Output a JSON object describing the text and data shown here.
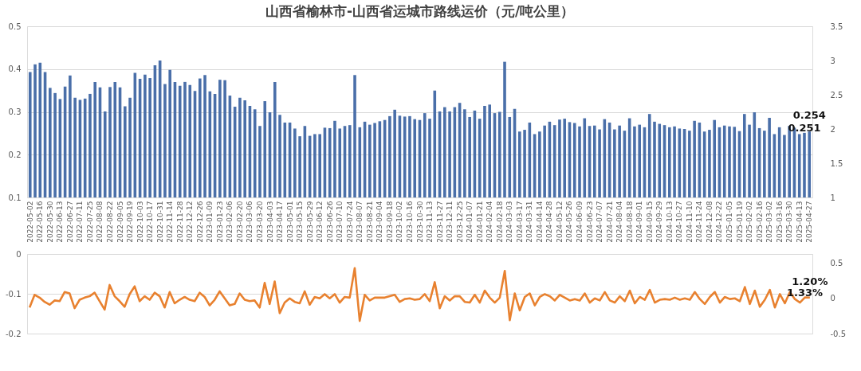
{
  "chart_data": [
    {
      "type": "bar",
      "title": "山西省榆林市-山西省运城市路线运价（元/吨公里）",
      "categories": [
        "2022-05-02",
        null,
        "2022-05-16",
        null,
        "2022-05-30",
        null,
        "2022-06-13",
        null,
        "2022-06-27",
        null,
        "2022-07-11",
        null,
        "2022-07-25",
        null,
        "2022-08-08",
        null,
        "2022-08-22",
        null,
        "2022-09-05",
        null,
        "2022-09-19",
        null,
        "2022-10-03",
        null,
        "2022-10-17",
        null,
        "2022-10-31",
        null,
        "2022-11-14",
        null,
        "2022-11-28",
        null,
        "2022-12-12",
        null,
        "2022-12-26",
        null,
        "2023-01-09",
        null,
        "2023-01-23",
        null,
        "2023-02-06",
        null,
        "2023-02-20",
        null,
        "2023-03-06",
        null,
        "2023-03-20",
        null,
        "2023-04-03",
        null,
        "2023-04-17",
        null,
        "2023-05-01",
        null,
        "2023-05-15",
        null,
        "2023-05-29",
        null,
        "2023-06-12",
        null,
        "2023-06-26",
        null,
        "2023-07-10",
        null,
        "2023-07-24",
        null,
        "2023-08-07",
        null,
        "2023-08-21",
        null,
        "2023-09-04",
        null,
        "2023-09-18",
        null,
        "2023-10-02",
        null,
        "2023-10-16",
        null,
        "2023-10-30",
        null,
        "2023-11-13",
        null,
        "2023-11-27",
        null,
        "2023-12-11",
        null,
        "2023-12-25",
        null,
        "2024-01-07",
        null,
        "2024-01-21",
        null,
        "2024-02-04",
        null,
        "2024-02-18",
        null,
        "2024-03-03",
        null,
        "2024-03-17",
        null,
        "2024-03-31",
        null,
        "2024-04-14",
        null,
        "2024-04-28",
        null,
        "2024-05-12",
        null,
        "2024-05-26",
        null,
        "2024-06-09",
        null,
        "2024-06-23",
        null,
        "2024-07-07",
        null,
        "2024-07-21",
        null,
        "2024-08-04",
        null,
        "2024-08-18",
        null,
        "2024-09-01",
        null,
        "2024-09-15",
        null,
        "2024-09-29",
        null,
        "2024-10-13",
        null,
        "2024-10-27",
        null,
        "2024-11-10",
        null,
        "2024-11-24",
        null,
        "2024-12-08",
        null,
        "2024-12-22",
        null,
        "2025-01-05",
        null,
        "2025-01-19",
        null,
        "2025-02-02",
        null,
        "2025-02-16",
        null,
        "2025-03-02",
        null,
        "2025-03-16",
        null,
        "2025-03-30",
        null,
        "2025-04-13",
        null,
        "2025-04-27"
      ],
      "values": [
        0.393,
        0.411,
        0.415,
        0.393,
        0.356,
        0.344,
        0.33,
        0.359,
        0.385,
        0.333,
        0.328,
        0.331,
        0.342,
        0.37,
        0.357,
        0.301,
        0.358,
        0.37,
        0.357,
        0.313,
        0.333,
        0.391,
        0.377,
        0.387,
        0.379,
        0.409,
        0.42,
        0.365,
        0.398,
        0.37,
        0.361,
        0.37,
        0.363,
        0.349,
        0.378,
        0.386,
        0.348,
        0.342,
        0.375,
        0.374,
        0.338,
        0.312,
        0.333,
        0.327,
        0.314,
        0.306,
        0.267,
        0.325,
        0.299,
        0.37,
        0.293,
        0.275,
        0.275,
        0.261,
        0.243,
        0.267,
        0.244,
        0.248,
        0.248,
        0.263,
        0.262,
        0.279,
        0.261,
        0.267,
        0.269,
        0.386,
        0.264,
        0.277,
        0.27,
        0.274,
        0.278,
        0.281,
        0.29,
        0.305,
        0.291,
        0.289,
        0.29,
        0.283,
        0.281,
        0.297,
        0.284,
        0.35,
        0.301,
        0.311,
        0.301,
        0.311,
        0.321,
        0.306,
        0.288,
        0.303,
        0.284,
        0.314,
        0.317,
        0.297,
        0.3,
        0.417,
        0.288,
        0.307,
        0.254,
        0.258,
        0.275,
        0.248,
        0.254,
        0.268,
        0.277,
        0.269,
        0.282,
        0.284,
        0.276,
        0.274,
        0.266,
        0.285,
        0.267,
        0.268,
        0.259,
        0.283,
        0.275,
        0.259,
        0.268,
        0.256,
        0.285,
        0.266,
        0.27,
        0.264,
        0.295,
        0.277,
        0.272,
        0.269,
        0.264,
        0.266,
        0.261,
        0.26,
        0.256,
        0.279,
        0.275,
        0.254,
        0.258,
        0.281,
        0.264,
        0.268,
        0.266,
        0.265,
        0.255,
        0.295,
        0.27,
        0.299,
        0.262,
        0.256,
        0.286,
        0.248,
        0.264,
        0.246,
        0.267,
        0.263,
        0.248,
        0.251,
        0.254
      ],
      "value_labels": [
        null,
        null,
        null,
        null,
        null,
        null,
        null,
        null,
        null,
        null,
        null,
        null,
        null,
        null,
        null,
        null,
        null,
        null,
        null,
        null,
        null,
        null,
        null,
        null,
        null,
        null,
        null,
        null,
        null,
        null,
        null,
        null,
        null,
        null,
        null,
        null,
        null,
        null,
        null,
        null,
        null,
        null,
        null,
        null,
        null,
        null,
        null,
        null,
        null,
        null,
        null,
        null,
        null,
        null,
        null,
        null,
        null,
        null,
        null,
        null,
        null,
        null,
        null,
        null,
        null,
        null,
        null,
        null,
        null,
        null,
        null,
        null,
        null,
        null,
        null,
        null,
        null,
        null,
        null,
        null,
        null,
        null,
        null,
        null,
        null,
        null,
        null,
        null,
        null,
        null,
        null,
        null,
        null,
        null,
        null,
        null,
        null,
        null,
        null,
        null,
        null,
        null,
        null,
        null,
        null,
        null,
        null,
        null,
        null,
        null,
        null,
        null,
        null,
        null,
        null,
        null,
        null,
        null,
        null,
        null,
        null,
        null,
        null,
        null,
        null,
        null,
        null,
        null,
        null,
        null,
        null,
        null,
        null,
        null,
        null,
        null,
        null,
        null,
        null,
        null,
        null,
        null,
        null,
        null,
        null,
        null,
        null,
        null,
        null,
        null,
        null,
        null,
        null,
        null,
        null,
        "0.251",
        "0.254"
      ],
      "color": "#4a6fa9",
      "ylim": [
        0.1,
        0.5
      ],
      "yticks": [
        0.1,
        0.2,
        0.3,
        0.4,
        0.5
      ],
      "y2lim": [
        1,
        3.5
      ],
      "y2ticks": [
        1,
        1.5,
        2,
        2.5,
        3,
        3.5
      ],
      "grid": "y"
    },
    {
      "type": "line",
      "categories": [
        "2022-05-02",
        null,
        "2022-05-16",
        null,
        "2022-05-30",
        null,
        "2022-06-13",
        null,
        "2022-06-27",
        null,
        "2022-07-11",
        null,
        "2022-07-25",
        null,
        "2022-08-08",
        null,
        "2022-08-22",
        null,
        "2022-09-05",
        null,
        "2022-09-19",
        null,
        "2022-10-03",
        null,
        "2022-10-17",
        null,
        "2022-10-31",
        null,
        "2022-11-14",
        null,
        "2022-11-28",
        null,
        "2022-12-12",
        null,
        "2022-12-26",
        null,
        "2023-01-09",
        null,
        "2023-01-23",
        null,
        "2023-02-06",
        null,
        "2023-02-20",
        null,
        "2023-03-06",
        null,
        "2023-03-20",
        null,
        "2023-04-03",
        null,
        "2023-04-17",
        null,
        "2023-05-01",
        null,
        "2023-05-15",
        null,
        "2023-05-29",
        null,
        "2023-06-12",
        null,
        "2023-06-26",
        null,
        "2023-07-10",
        null,
        "2023-07-24",
        null,
        "2023-08-07",
        null,
        "2023-08-21",
        null,
        "2023-09-04",
        null,
        "2023-09-18",
        null,
        "2023-10-02",
        null,
        "2023-10-16",
        null,
        "2023-10-30",
        null,
        "2023-11-13",
        null,
        "2023-11-27",
        null,
        "2023-12-11",
        null,
        "2023-12-25",
        null,
        "2024-01-07",
        null,
        "2024-01-21",
        null,
        "2024-02-04",
        null,
        "2024-02-18",
        null,
        "2024-03-03",
        null,
        "2024-03-17",
        null,
        "2024-03-31",
        null,
        "2024-04-14",
        null,
        "2024-04-28",
        null,
        "2024-05-12",
        null,
        "2024-05-26",
        null,
        "2024-06-09",
        null,
        "2024-06-23",
        null,
        "2024-07-07",
        null,
        "2024-07-21",
        null,
        "2024-08-04",
        null,
        "2024-08-18",
        null,
        "2024-09-01",
        null,
        "2024-09-15",
        null,
        "2024-09-29",
        null,
        "2024-10-13",
        null,
        "2024-10-27",
        null,
        "2024-11-10",
        null,
        "2024-11-24",
        null,
        "2024-12-08",
        null,
        "2024-12-22",
        null,
        "2025-01-05",
        null,
        "2025-01-19",
        null,
        "2025-02-02",
        null,
        "2025-02-16",
        null,
        "2025-03-02",
        null,
        "2025-03-16",
        null,
        "2025-03-30",
        null,
        "2025-04-13",
        null,
        "2025-04-27"
      ],
      "series": [
        {
          "color": "#e8812f",
          "axis": "y2",
          "values": [
            -0.13,
            0.05,
            0.01,
            -0.05,
            -0.09,
            -0.03,
            -0.04,
            0.09,
            0.07,
            -0.14,
            -0.02,
            0.01,
            0.03,
            0.08,
            -0.04,
            -0.16,
            0.19,
            0.03,
            -0.04,
            -0.12,
            0.06,
            0.17,
            -0.04,
            0.03,
            -0.02,
            0.08,
            0.03,
            -0.13,
            0.09,
            -0.07,
            -0.02,
            0.02,
            -0.02,
            -0.04,
            0.08,
            0.02,
            -0.1,
            -0.02,
            0.1,
            0.0,
            -0.1,
            -0.08,
            0.07,
            -0.02,
            -0.04,
            -0.03,
            -0.13,
            0.22,
            -0.08,
            0.24,
            -0.21,
            -0.06,
            0.0,
            -0.05,
            -0.07,
            0.1,
            -0.09,
            0.02,
            0.0,
            0.06,
            0.0,
            0.06,
            -0.06,
            0.02,
            0.01,
            0.43,
            -0.32,
            0.05,
            -0.03,
            0.01,
            0.01,
            0.01,
            0.03,
            0.05,
            -0.05,
            -0.01,
            0.0,
            -0.02,
            -0.01,
            0.06,
            -0.04,
            0.23,
            -0.14,
            0.03,
            -0.03,
            0.03,
            0.03,
            -0.05,
            -0.06,
            0.05,
            -0.06,
            0.11,
            0.01,
            -0.06,
            0.01,
            0.39,
            -0.31,
            0.07,
            -0.17,
            0.02,
            0.07,
            -0.1,
            0.02,
            0.06,
            0.03,
            -0.03,
            0.05,
            0.01,
            -0.03,
            -0.01,
            -0.03,
            0.07,
            -0.06,
            0.0,
            -0.03,
            0.09,
            -0.03,
            -0.06,
            0.03,
            -0.04,
            0.11,
            -0.07,
            0.02,
            -0.02,
            0.12,
            -0.06,
            -0.02,
            -0.01,
            -0.02,
            0.01,
            -0.02,
            0.0,
            -0.02,
            0.09,
            -0.01,
            -0.08,
            0.02,
            0.09,
            -0.06,
            0.02,
            -0.01,
            0.0,
            -0.04,
            0.16,
            -0.08,
            0.11,
            -0.12,
            -0.02,
            0.12,
            -0.13,
            0.06,
            -0.07,
            0.09,
            -0.01,
            -0.06,
            0.0133,
            0.012
          ],
          "value_labels": [
            null,
            null,
            null,
            null,
            null,
            null,
            null,
            null,
            null,
            null,
            null,
            null,
            null,
            null,
            null,
            null,
            null,
            null,
            null,
            null,
            null,
            null,
            null,
            null,
            null,
            null,
            null,
            null,
            null,
            null,
            null,
            null,
            null,
            null,
            null,
            null,
            null,
            null,
            null,
            null,
            null,
            null,
            null,
            null,
            null,
            null,
            null,
            null,
            null,
            null,
            null,
            null,
            null,
            null,
            null,
            null,
            null,
            null,
            null,
            null,
            null,
            null,
            null,
            null,
            null,
            null,
            null,
            null,
            null,
            null,
            null,
            null,
            null,
            null,
            null,
            null,
            null,
            null,
            null,
            null,
            null,
            null,
            null,
            null,
            null,
            null,
            null,
            null,
            null,
            null,
            null,
            null,
            null,
            null,
            null,
            null,
            null,
            null,
            null,
            null,
            null,
            null,
            null,
            null,
            null,
            null,
            null,
            null,
            null,
            null,
            null,
            null,
            null,
            null,
            null,
            null,
            null,
            null,
            null,
            null,
            null,
            null,
            null,
            null,
            null,
            null,
            null,
            null,
            null,
            null,
            null,
            null,
            null,
            null,
            null,
            null,
            null,
            null,
            null,
            null,
            null,
            null,
            null,
            null,
            null,
            null,
            null,
            null,
            null,
            null,
            null,
            null,
            null,
            null,
            null,
            "1.33%",
            "1.20%"
          ]
        }
      ],
      "ylim": [
        -0.2,
        0
      ],
      "yticks": [
        -0.2,
        -0.1,
        0
      ],
      "y2lim": [
        -0.5,
        0.63
      ],
      "y2ticks": [
        -0.5,
        0,
        0.5
      ],
      "grid": "y",
      "tick_labels": "y"
    }
  ]
}
